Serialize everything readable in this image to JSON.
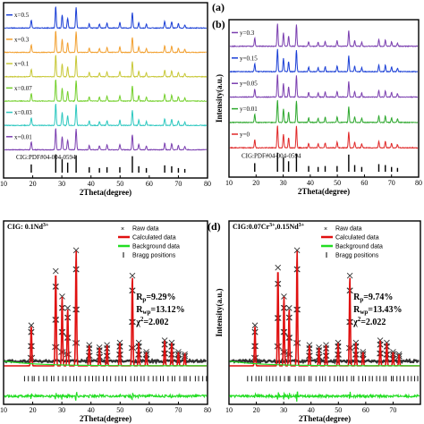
{
  "chart_data": [
    {
      "panel": "(a)",
      "type": "line",
      "xlabel": "2Theta(degree)",
      "ylabel": "",
      "xlim": [
        10,
        80
      ],
      "xticks": [
        "10",
        "20",
        "30",
        "40",
        "50",
        "60",
        "70",
        "80"
      ],
      "series": [
        {
          "name": "x=0.5",
          "color": "#1a3fd6"
        },
        {
          "name": "x=0.3",
          "color": "#f2a030"
        },
        {
          "name": "x=0.1",
          "color": "#c8c838"
        },
        {
          "name": "x=0.07",
          "color": "#74d02c"
        },
        {
          "name": "x=0.03",
          "color": "#2ec8c0"
        },
        {
          "name": "x=0.01",
          "color": "#7b3fb0"
        }
      ],
      "reference": {
        "name": "CIG:PDF#04-004-0594",
        "color": "#000000",
        "peaks": [
          [
            19.5,
            0.45
          ],
          [
            27.9,
            1.0
          ],
          [
            30.1,
            0.75
          ],
          [
            32.0,
            0.55
          ],
          [
            34.9,
            0.95
          ],
          [
            39.4,
            0.3
          ],
          [
            42.9,
            0.25
          ],
          [
            45.5,
            0.3
          ],
          [
            49.9,
            0.3
          ],
          [
            54.2,
            0.9
          ],
          [
            56.4,
            0.35
          ],
          [
            59.0,
            0.25
          ],
          [
            65.3,
            0.4
          ],
          [
            67.7,
            0.35
          ],
          [
            70.0,
            0.25
          ],
          [
            72.2,
            0.2
          ]
        ]
      },
      "peaks": [
        [
          19.5,
          0.35
        ],
        [
          27.9,
          1.0
        ],
        [
          30.1,
          0.6
        ],
        [
          32.0,
          0.45
        ],
        [
          34.9,
          0.95
        ],
        [
          39.4,
          0.2
        ],
        [
          42.9,
          0.18
        ],
        [
          45.5,
          0.22
        ],
        [
          49.9,
          0.25
        ],
        [
          54.2,
          0.7
        ],
        [
          56.4,
          0.25
        ],
        [
          59.0,
          0.18
        ],
        [
          65.3,
          0.3
        ],
        [
          67.7,
          0.28
        ],
        [
          70.0,
          0.2
        ],
        [
          72.2,
          0.15
        ]
      ]
    },
    {
      "panel": "(b)",
      "type": "line",
      "xlabel": "2Theta(degree)",
      "ylabel": "Intensity(a.u.)",
      "xlim": [
        10,
        80
      ],
      "xticks": [
        "10",
        "20",
        "30",
        "40",
        "50",
        "60",
        "70",
        "80"
      ],
      "series": [
        {
          "name": "y=0.3",
          "color": "#7b3fb0"
        },
        {
          "name": "y=0.15",
          "color": "#1a3fd6"
        },
        {
          "name": "y=0.05",
          "color": "#7b3fb0"
        },
        {
          "name": "y=0.01",
          "color": "#2ea82e"
        },
        {
          "name": "y=0",
          "color": "#e02828"
        }
      ],
      "reference": {
        "name": "CIG:PDF#04-004-0594",
        "color": "#000000",
        "peaks": [
          [
            19.5,
            0.45
          ],
          [
            27.9,
            1.0
          ],
          [
            30.1,
            0.75
          ],
          [
            32.0,
            0.55
          ],
          [
            34.9,
            0.95
          ],
          [
            39.4,
            0.3
          ],
          [
            42.9,
            0.25
          ],
          [
            45.5,
            0.3
          ],
          [
            49.9,
            0.3
          ],
          [
            54.2,
            0.9
          ],
          [
            56.4,
            0.35
          ],
          [
            59.0,
            0.25
          ],
          [
            65.3,
            0.4
          ],
          [
            67.7,
            0.35
          ],
          [
            70.0,
            0.25
          ],
          [
            72.2,
            0.2
          ]
        ]
      },
      "peaks": [
        [
          19.5,
          0.35
        ],
        [
          27.9,
          1.0
        ],
        [
          30.1,
          0.6
        ],
        [
          32.0,
          0.45
        ],
        [
          34.9,
          0.95
        ],
        [
          39.4,
          0.2
        ],
        [
          42.9,
          0.18
        ],
        [
          45.5,
          0.22
        ],
        [
          49.9,
          0.25
        ],
        [
          54.2,
          0.7
        ],
        [
          56.4,
          0.25
        ],
        [
          59.0,
          0.18
        ],
        [
          65.3,
          0.3
        ],
        [
          67.7,
          0.28
        ],
        [
          70.0,
          0.2
        ],
        [
          72.2,
          0.15
        ]
      ]
    },
    {
      "panel": "",
      "type": "line",
      "title": "CIG: 0.1Nd",
      "title_sup": "3+",
      "xlabel": "2Theta(degree)",
      "ylabel": "",
      "xlim": [
        10,
        80
      ],
      "xticks": [
        "10",
        "20",
        "30",
        "40",
        "50",
        "60",
        "70",
        "80"
      ],
      "legend": [
        "Raw data",
        "Calculated data",
        "Background data",
        "Bragg positions"
      ],
      "fit": {
        "Rp": "9.29%",
        "Rwp": "13.12%",
        "chi2": "2.002"
      },
      "peaks": [
        [
          19.5,
          0.35
        ],
        [
          27.9,
          0.82
        ],
        [
          30.1,
          0.6
        ],
        [
          32.0,
          0.5
        ],
        [
          34.9,
          1.0
        ],
        [
          39.4,
          0.18
        ],
        [
          42.9,
          0.16
        ],
        [
          45.5,
          0.18
        ],
        [
          49.9,
          0.2
        ],
        [
          54.2,
          0.78
        ],
        [
          56.4,
          0.2
        ],
        [
          59.0,
          0.12
        ],
        [
          65.3,
          0.22
        ],
        [
          67.7,
          0.2
        ],
        [
          70.0,
          0.12
        ],
        [
          72.2,
          0.1
        ]
      ]
    },
    {
      "panel": "(d)",
      "type": "line",
      "title": "CIG:0.07Cr",
      "title_sup1": "3+",
      "title_mid": ",0.15Nd",
      "title_sup2": "3+",
      "xlabel": "2Theta(degree)",
      "ylabel": "Intensity(a.u.)",
      "xlim": [
        10,
        80
      ],
      "xticks": [
        "10",
        "20",
        "30",
        "40",
        "50",
        "60",
        "70"
      ],
      "legend": [
        "Raw data",
        "Calculated data",
        "Background data",
        "Bragg positions"
      ],
      "fit": {
        "Rp": "9.74%",
        "Rwp": "13.43%",
        "chi2": "2.022"
      },
      "peaks": [
        [
          19.5,
          0.35
        ],
        [
          27.9,
          0.85
        ],
        [
          30.1,
          0.6
        ],
        [
          32.0,
          0.5
        ],
        [
          34.9,
          1.0
        ],
        [
          39.4,
          0.18
        ],
        [
          42.9,
          0.16
        ],
        [
          45.5,
          0.18
        ],
        [
          49.9,
          0.2
        ],
        [
          54.2,
          0.78
        ],
        [
          56.4,
          0.2
        ],
        [
          59.0,
          0.12
        ],
        [
          65.3,
          0.22
        ],
        [
          67.7,
          0.2
        ],
        [
          70.0,
          0.12
        ],
        [
          72.2,
          0.1
        ]
      ]
    }
  ],
  "colors": {
    "raw": "#333333",
    "calc": "#e01010",
    "background": "#22dd22",
    "bragg": "#000000",
    "ref": "#000000"
  }
}
